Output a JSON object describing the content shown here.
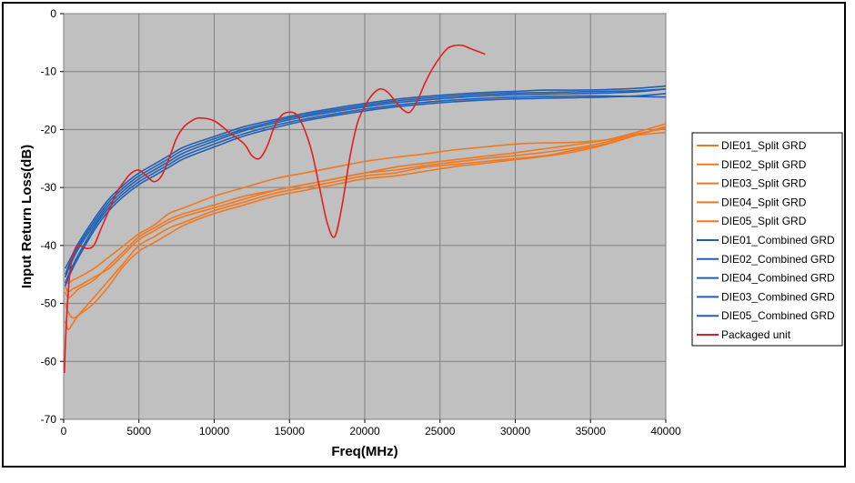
{
  "chart_data": {
    "type": "line",
    "title": "",
    "xlabel": "Freq(MHz)",
    "ylabel": "Input Return Loss(dB)",
    "xlim": [
      0,
      40000
    ],
    "ylim": [
      -70,
      0
    ],
    "xticks": [
      0,
      5000,
      10000,
      15000,
      20000,
      25000,
      30000,
      35000,
      40000
    ],
    "yticks": [
      0,
      -10,
      -20,
      -30,
      -40,
      -50,
      -60,
      -70
    ],
    "xtick_labels": [
      "0",
      "5000",
      "10000",
      "15000",
      "20000",
      "25000",
      "30000",
      "35000",
      "40000"
    ],
    "ytick_labels": [
      "0",
      "-10",
      "-20",
      "-30",
      "-40",
      "-50",
      "-60",
      "-70"
    ],
    "grid": true,
    "legend_position": "right",
    "plot_background": "#c0c0c0",
    "series": [
      {
        "name": "DIE01_Split GRD",
        "color": "#f07820",
        "x": [
          100,
          300,
          600,
          1000,
          2000,
          3000,
          4000,
          5000,
          6000,
          7000,
          8000,
          10000,
          12000,
          14000,
          16000,
          18000,
          20000,
          22000,
          24000,
          26000,
          28000,
          30000,
          32000,
          34000,
          36000,
          38000,
          40000
        ],
        "y": [
          -47,
          -48,
          -47.5,
          -47,
          -45.5,
          -44,
          -41.5,
          -39,
          -37.5,
          -36,
          -35,
          -33.5,
          -32,
          -30.5,
          -29.5,
          -28.5,
          -27.5,
          -26.5,
          -25.8,
          -25.2,
          -24.6,
          -24,
          -23.3,
          -22.6,
          -21.8,
          -20.5,
          -19
        ]
      },
      {
        "name": "DIE02_Split GRD",
        "color": "#f07820",
        "x": [
          100,
          300,
          600,
          1000,
          2000,
          3000,
          4000,
          5000,
          6000,
          7000,
          8000,
          10000,
          12000,
          14000,
          16000,
          18000,
          20000,
          22000,
          24000,
          26000,
          28000,
          30000,
          32000,
          34000,
          36000,
          38000,
          40000
        ],
        "y": [
          -50,
          -51.5,
          -52.5,
          -52,
          -50,
          -47,
          -43.5,
          -41,
          -39.5,
          -38,
          -36.5,
          -34.5,
          -33,
          -31.5,
          -30.5,
          -29.5,
          -28.5,
          -28,
          -27.2,
          -26.4,
          -25.8,
          -25.2,
          -24.6,
          -23.8,
          -22.6,
          -21,
          -19.5
        ]
      },
      {
        "name": "DIE03_Split GRD",
        "color": "#f07820",
        "x": [
          100,
          300,
          600,
          1000,
          2000,
          3000,
          4000,
          5000,
          6000,
          7000,
          8000,
          10000,
          12000,
          14000,
          16000,
          18000,
          20000,
          22000,
          24000,
          26000,
          28000,
          30000,
          32000,
          34000,
          36000,
          38000,
          40000
        ],
        "y": [
          -53,
          -54.5,
          -53.5,
          -52,
          -49,
          -46,
          -43,
          -40,
          -38.5,
          -37,
          -36,
          -34,
          -32.5,
          -31,
          -30,
          -29,
          -28,
          -27.5,
          -26.5,
          -26,
          -25.5,
          -25,
          -24.5,
          -23.5,
          -22.5,
          -21,
          -19.5
        ]
      },
      {
        "name": "DIE04_Split GRD",
        "color": "#f07820",
        "x": [
          100,
          300,
          600,
          1000,
          2000,
          3000,
          4000,
          5000,
          6000,
          7000,
          8000,
          10000,
          12000,
          14000,
          16000,
          18000,
          20000,
          22000,
          24000,
          26000,
          28000,
          30000,
          32000,
          34000,
          36000,
          38000,
          40000
        ],
        "y": [
          -48,
          -49,
          -48.5,
          -47.5,
          -46,
          -43.5,
          -41,
          -38.5,
          -37,
          -35.5,
          -34.5,
          -33,
          -31.5,
          -30.5,
          -29.5,
          -28.5,
          -27.5,
          -27,
          -26.2,
          -25.6,
          -25,
          -24.5,
          -23.9,
          -23.2,
          -22.2,
          -20.8,
          -19.8
        ]
      },
      {
        "name": "DIE05_Split GRD",
        "color": "#f07820",
        "x": [
          100,
          300,
          600,
          1000,
          2000,
          3000,
          4000,
          5000,
          6000,
          7000,
          8000,
          10000,
          12000,
          14000,
          16000,
          18000,
          20000,
          22000,
          24000,
          26000,
          28000,
          30000,
          32000,
          34000,
          36000,
          38000,
          40000
        ],
        "y": [
          -46,
          -46.5,
          -46,
          -45.5,
          -44,
          -42,
          -40,
          -38,
          -36.5,
          -34.5,
          -33.5,
          -31.5,
          -30,
          -28.5,
          -27.5,
          -26.5,
          -25.5,
          -24.8,
          -24.2,
          -23.5,
          -23,
          -22.5,
          -22.3,
          -22.2,
          -21.8,
          -21,
          -20.5
        ]
      },
      {
        "name": "DIE01_Combined GRD",
        "color": "#1f5fb4",
        "x": [
          100,
          500,
          1000,
          2000,
          3000,
          4000,
          5000,
          6000,
          7000,
          8000,
          10000,
          12000,
          14000,
          16000,
          18000,
          20000,
          22000,
          24000,
          26000,
          28000,
          30000,
          32000,
          34000,
          36000,
          38000,
          40000
        ],
        "y": [
          -44,
          -42,
          -39.5,
          -35.5,
          -32,
          -29.5,
          -27.5,
          -26,
          -24.5,
          -23,
          -21.2,
          -19.5,
          -18.3,
          -17.2,
          -16.3,
          -15.5,
          -14.8,
          -14.3,
          -13.9,
          -13.6,
          -13.4,
          -13.2,
          -13.2,
          -13.1,
          -12.9,
          -12.5
        ]
      },
      {
        "name": "DIE02_Combined GRD",
        "color": "#1f5fb4",
        "x": [
          100,
          500,
          1000,
          2000,
          3000,
          4000,
          5000,
          6000,
          7000,
          8000,
          10000,
          12000,
          14000,
          16000,
          18000,
          20000,
          22000,
          24000,
          26000,
          28000,
          30000,
          32000,
          34000,
          36000,
          38000,
          40000
        ],
        "y": [
          -45.5,
          -43,
          -40.5,
          -36.5,
          -33,
          -30.5,
          -28.5,
          -27,
          -25.5,
          -24,
          -22,
          -20.2,
          -18.9,
          -17.8,
          -16.9,
          -16.1,
          -15.4,
          -14.9,
          -14.5,
          -14.2,
          -14,
          -13.9,
          -13.8,
          -13.7,
          -13.5,
          -13
        ]
      },
      {
        "name": "DIE04_Combined GRD",
        "color": "#1f5fb4",
        "x": [
          100,
          500,
          1000,
          2000,
          3000,
          4000,
          5000,
          6000,
          7000,
          8000,
          10000,
          12000,
          14000,
          16000,
          18000,
          20000,
          22000,
          24000,
          26000,
          28000,
          30000,
          32000,
          34000,
          36000,
          38000,
          40000
        ],
        "y": [
          -46.5,
          -44,
          -41.5,
          -37,
          -33.5,
          -31,
          -29,
          -27.5,
          -26,
          -24.5,
          -22.5,
          -20.7,
          -19.3,
          -18.2,
          -17.3,
          -16.5,
          -15.8,
          -15.3,
          -14.9,
          -14.6,
          -14.4,
          -14.3,
          -14.2,
          -14.2,
          -14.3,
          -14.4
        ]
      },
      {
        "name": "DIE03_Combined GRD",
        "color": "#1f5fb4",
        "x": [
          100,
          500,
          1000,
          2000,
          3000,
          4000,
          5000,
          6000,
          7000,
          8000,
          10000,
          12000,
          14000,
          16000,
          18000,
          20000,
          22000,
          24000,
          26000,
          28000,
          30000,
          32000,
          34000,
          36000,
          38000,
          40000
        ],
        "y": [
          -45,
          -42.5,
          -40,
          -36,
          -32.5,
          -30,
          -28,
          -26.5,
          -25,
          -23.5,
          -21.6,
          -19.9,
          -18.6,
          -17.5,
          -16.6,
          -15.8,
          -15.1,
          -14.6,
          -14.2,
          -13.9,
          -13.7,
          -13.6,
          -13.5,
          -13.4,
          -13.3,
          -13
        ]
      },
      {
        "name": "DIE05_Combined GRD",
        "color": "#1f5fb4",
        "x": [
          100,
          500,
          1000,
          2000,
          3000,
          4000,
          5000,
          6000,
          7000,
          8000,
          10000,
          12000,
          14000,
          16000,
          18000,
          20000,
          22000,
          24000,
          26000,
          28000,
          30000,
          32000,
          34000,
          36000,
          38000,
          40000
        ],
        "y": [
          -47,
          -44.5,
          -42,
          -37.5,
          -34,
          -31.5,
          -29.5,
          -28,
          -26.5,
          -25,
          -23,
          -21.1,
          -19.7,
          -18.5,
          -17.6,
          -16.8,
          -16.1,
          -15.6,
          -15.2,
          -14.9,
          -14.7,
          -14.6,
          -14.5,
          -14.4,
          -14.2,
          -13.8
        ]
      },
      {
        "name": "Packaged unit",
        "color": "#e02020",
        "x": [
          50,
          150,
          400,
          700,
          1000,
          1500,
          2000,
          2500,
          3000,
          3500,
          4000,
          4500,
          5000,
          5500,
          6000,
          6500,
          7000,
          7500,
          8000,
          8500,
          9000,
          10000,
          11000,
          12000,
          12500,
          13000,
          13500,
          14000,
          14500,
          15000,
          15500,
          16000,
          16500,
          17000,
          17500,
          18000,
          18500,
          19000,
          19500,
          20000,
          20500,
          21000,
          21500,
          22000,
          22500,
          23000,
          23500,
          24000,
          24500,
          25000,
          25500,
          26000,
          26500,
          27000,
          27500,
          28000
        ],
        "y": [
          -62,
          -55,
          -45,
          -41,
          -40,
          -40.5,
          -40,
          -37,
          -34,
          -31,
          -29,
          -27.5,
          -27,
          -28,
          -29,
          -28,
          -25,
          -21.5,
          -19.5,
          -18.5,
          -18,
          -18.5,
          -20.5,
          -22.5,
          -24.5,
          -25,
          -23,
          -19.5,
          -17.5,
          -17,
          -17.5,
          -20,
          -24,
          -30,
          -36,
          -38.5,
          -33,
          -25,
          -19,
          -16,
          -14,
          -13,
          -13.5,
          -15,
          -16.5,
          -17,
          -15,
          -12,
          -9.5,
          -7.5,
          -6,
          -5.5,
          -5.5,
          -6,
          -6.5,
          -7
        ]
      }
    ]
  }
}
